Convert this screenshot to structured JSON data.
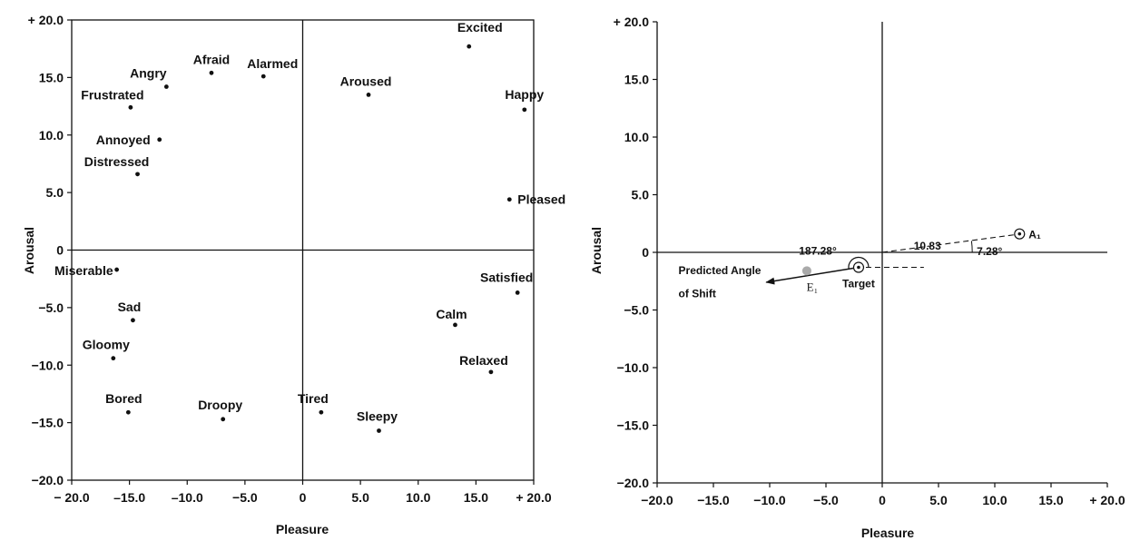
{
  "chart_data": [
    {
      "type": "scatter",
      "xlabel": "Pleasure",
      "ylabel": "Arousal",
      "xlim": [
        -20,
        20
      ],
      "ylim": [
        -20,
        20
      ],
      "x_ticks": [
        "− 20.0",
        "–15.0",
        "–10.0",
        "−5.0",
        "0",
        "5.0",
        "10.0",
        "15.0",
        "+ 20.0"
      ],
      "y_ticks": [
        "+ 20.0",
        "15.0",
        "10.0",
        "5.0",
        "0",
        "−5.0",
        "−10.0",
        "−15.0",
        "−20.0"
      ],
      "points": [
        {
          "label": "Excited",
          "x": 14.4,
          "y": 17.7
        },
        {
          "label": "Afraid",
          "x": -7.9,
          "y": 15.4
        },
        {
          "label": "Alarmed",
          "x": -3.4,
          "y": 15.1
        },
        {
          "label": "Angry",
          "x": -11.8,
          "y": 14.2
        },
        {
          "label": "Aroused",
          "x": 5.7,
          "y": 13.5
        },
        {
          "label": "Frustrated",
          "x": -14.9,
          "y": 12.4
        },
        {
          "label": "Happy",
          "x": 19.2,
          "y": 12.2
        },
        {
          "label": "Annoyed",
          "x": -12.4,
          "y": 9.6
        },
        {
          "label": "Distressed",
          "x": -14.3,
          "y": 6.6
        },
        {
          "label": "Pleased",
          "x": 17.9,
          "y": 4.4
        },
        {
          "label": "Miserable",
          "x": -16.1,
          "y": -1.7
        },
        {
          "label": "Satisfied",
          "x": 18.6,
          "y": -3.7
        },
        {
          "label": "Sad",
          "x": -14.7,
          "y": -6.1
        },
        {
          "label": "Calm",
          "x": 13.2,
          "y": -6.5
        },
        {
          "label": "Gloomy",
          "x": -16.4,
          "y": -9.4
        },
        {
          "label": "Relaxed",
          "x": 16.3,
          "y": -10.6
        },
        {
          "label": "Bored",
          "x": -15.1,
          "y": -14.1
        },
        {
          "label": "Tired",
          "x": 1.6,
          "y": -14.1
        },
        {
          "label": "Droopy",
          "x": -6.9,
          "y": -14.7
        },
        {
          "label": "Sleepy",
          "x": 6.6,
          "y": -15.7
        }
      ]
    },
    {
      "type": "scatter",
      "xlabel": "Pleasure",
      "ylabel": "Arousal",
      "xlim": [
        -20,
        20
      ],
      "ylim": [
        -20,
        20
      ],
      "x_ticks": [
        "−20.0",
        "−15.0",
        "−10.0",
        "−5.0",
        "0",
        "5.0",
        "10.0",
        "15.0",
        "+ 20.0"
      ],
      "y_ticks": [
        "+ 20.0",
        "15.0",
        "10.0",
        "5.0",
        "0",
        "−5.0",
        "−10.0",
        "−15.0",
        "−20.0"
      ],
      "points": [
        {
          "label": "A₁",
          "x": 12.2,
          "y": 1.6
        },
        {
          "label": "Target",
          "x": -2.1,
          "y": -1.3
        },
        {
          "label": "E₁",
          "x": -6.7,
          "y": -1.6
        }
      ],
      "annotations": {
        "distance": "10.83",
        "angle_a": "7.28°",
        "angle_shift": "187.28°",
        "arrow_label_line1": "Predicted Angle",
        "arrow_label_line2": "of Shift"
      }
    }
  ]
}
